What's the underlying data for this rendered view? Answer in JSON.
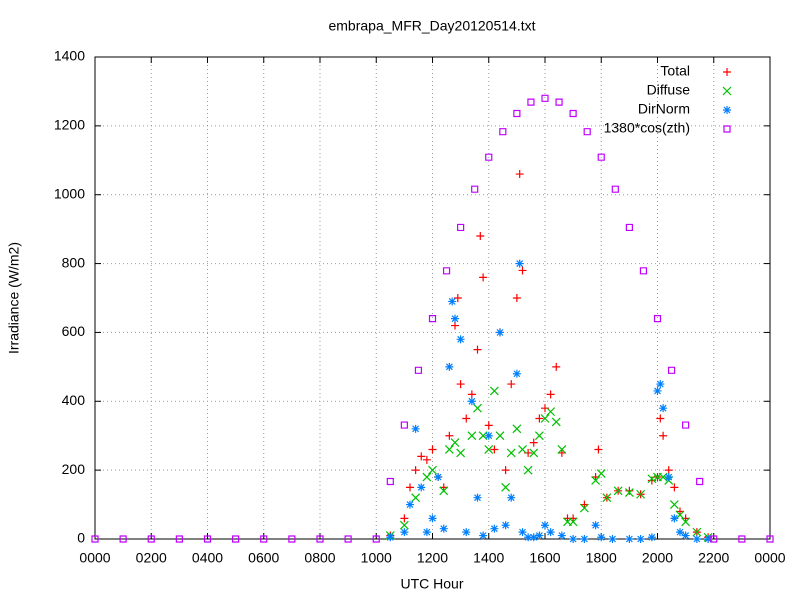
{
  "chart_data": {
    "type": "scatter",
    "title": "embrapa_MFR_Day20120514.txt",
    "x_label": "UTC Hour",
    "y_label": "Irradiance (W/m2)",
    "xlim": [
      0,
      24
    ],
    "ylim": [
      0,
      1400
    ],
    "xticks": [
      {
        "value": 0,
        "label": "0000"
      },
      {
        "value": 2,
        "label": "0200"
      },
      {
        "value": 4,
        "label": "0400"
      },
      {
        "value": 6,
        "label": "0600"
      },
      {
        "value": 8,
        "label": "0800"
      },
      {
        "value": 10,
        "label": "1000"
      },
      {
        "value": 12,
        "label": "1200"
      },
      {
        "value": 14,
        "label": "1400"
      },
      {
        "value": 16,
        "label": "1600"
      },
      {
        "value": 18,
        "label": "1800"
      },
      {
        "value": 20,
        "label": "2000"
      },
      {
        "value": 22,
        "label": "2200"
      },
      {
        "value": 24,
        "label": "0000"
      }
    ],
    "yticks": [
      0,
      200,
      400,
      600,
      800,
      1000,
      1200,
      1400
    ],
    "grid": true,
    "legend": "top-right",
    "series": [
      {
        "name": "Total",
        "color": "#ff0000",
        "marker": "plus",
        "x": [
          10.5,
          11,
          11.2,
          11.4,
          11.6,
          11.8,
          12,
          12.2,
          12.4,
          12.6,
          12.8,
          12.9,
          13,
          13.2,
          13.4,
          13.6,
          13.7,
          13.8,
          14,
          14.2,
          14.4,
          14.6,
          14.8,
          15,
          15.1,
          15.2,
          15.4,
          15.6,
          15.8,
          16,
          16.2,
          16.4,
          16.6,
          16.8,
          17,
          17.4,
          17.8,
          17.9,
          18.2,
          18.6,
          19,
          19.4,
          19.8,
          20,
          20.1,
          20.2,
          20.4,
          20.6,
          20.8,
          21,
          21.4,
          21.8
        ],
        "values": [
          10,
          60,
          150,
          200,
          240,
          230,
          260,
          180,
          150,
          300,
          620,
          700,
          450,
          350,
          420,
          550,
          880,
          760,
          330,
          260,
          600,
          200,
          450,
          700,
          1060,
          780,
          250,
          280,
          350,
          380,
          420,
          500,
          250,
          60,
          60,
          100,
          180,
          260,
          120,
          140,
          140,
          130,
          170,
          180,
          350,
          300,
          200,
          150,
          80,
          60,
          20,
          5
        ]
      },
      {
        "name": "Diffuse",
        "color": "#00c000",
        "marker": "cross",
        "x": [
          10.5,
          11,
          11.4,
          11.8,
          12,
          12.4,
          12.6,
          12.8,
          13,
          13.4,
          13.6,
          13.8,
          14,
          14.2,
          14.4,
          14.6,
          14.8,
          15,
          15.2,
          15.4,
          15.6,
          15.8,
          16,
          16.2,
          16.4,
          16.6,
          16.8,
          17,
          17.4,
          17.8,
          18,
          18.2,
          18.6,
          19,
          19.4,
          19.8,
          20,
          20.2,
          20.4,
          20.6,
          20.8,
          21,
          21.4,
          21.8
        ],
        "values": [
          10,
          40,
          120,
          180,
          200,
          140,
          260,
          280,
          250,
          300,
          380,
          300,
          260,
          430,
          300,
          150,
          250,
          320,
          260,
          200,
          250,
          300,
          350,
          370,
          340,
          260,
          50,
          50,
          90,
          170,
          190,
          120,
          140,
          135,
          130,
          175,
          180,
          180,
          170,
          100,
          70,
          50,
          20,
          5
        ]
      },
      {
        "name": "DirNorm",
        "color": "#0080ff",
        "marker": "star",
        "x": [
          10.5,
          11,
          11.2,
          11.4,
          11.6,
          11.8,
          12,
          12.2,
          12.4,
          12.6,
          12.7,
          12.8,
          13,
          13.2,
          13.4,
          13.6,
          13.8,
          14,
          14.2,
          14.4,
          14.6,
          14.8,
          15,
          15.1,
          15.2,
          15.4,
          15.6,
          15.8,
          16,
          16.2,
          16.6,
          17,
          17.4,
          17.8,
          18,
          18.4,
          19,
          19.4,
          19.8,
          20,
          20.1,
          20.2,
          20.4,
          20.6,
          20.8,
          21,
          21.4,
          21.8
        ],
        "values": [
          5,
          20,
          100,
          320,
          150,
          20,
          60,
          180,
          30,
          500,
          690,
          640,
          580,
          20,
          400,
          120,
          10,
          300,
          30,
          600,
          40,
          120,
          480,
          800,
          20,
          5,
          5,
          10,
          40,
          20,
          10,
          0,
          0,
          40,
          5,
          0,
          0,
          0,
          5,
          430,
          450,
          380,
          180,
          60,
          20,
          10,
          0,
          0
        ]
      },
      {
        "name": "1380*cos(zth)",
        "color": "#c000ff",
        "marker": "square",
        "x": [
          0,
          1,
          2,
          3,
          4,
          5,
          6,
          7,
          8,
          9,
          10,
          10.5,
          11,
          11.5,
          12,
          12.5,
          13,
          13.5,
          14,
          14.5,
          15,
          15.5,
          16,
          16.5,
          17,
          17.5,
          18,
          18.5,
          19,
          19.5,
          20,
          20.5,
          21,
          21.5,
          22,
          23,
          24
        ],
        "values": [
          0,
          0,
          0,
          0,
          0,
          0,
          0,
          0,
          0,
          0,
          0,
          167,
          331,
          490,
          640,
          779,
          905,
          1016,
          1109,
          1183,
          1236,
          1269,
          1280,
          1269,
          1236,
          1183,
          1109,
          1016,
          905,
          779,
          640,
          490,
          331,
          167,
          0,
          0,
          0
        ]
      }
    ]
  }
}
